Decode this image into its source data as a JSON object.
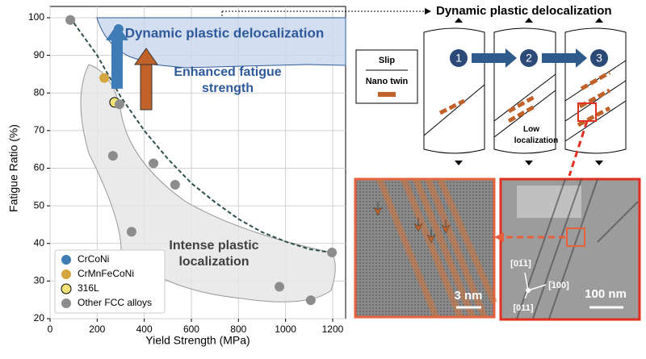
{
  "chart_data": {
    "type": "scatter",
    "xlabel": "Yield Strength (MPa)",
    "ylabel": "Fatigue Ratio (%)",
    "xlim": [
      0,
      1255
    ],
    "ylim": [
      20,
      100
    ],
    "xticks": [
      0,
      200,
      400,
      600,
      800,
      1000,
      1200
    ],
    "yticks": [
      20,
      30,
      40,
      50,
      60,
      70,
      80,
      90,
      100
    ],
    "grid": true,
    "legend": "lower left",
    "series": [
      {
        "name": "CrCoNi",
        "color": "#3f7bb5",
        "x": [
          291
        ],
        "values": [
          97
        ]
      },
      {
        "name": "CrMnFeCoNi",
        "color": "#d4a640",
        "x": [
          230
        ],
        "values": [
          84
        ]
      },
      {
        "name": "316L",
        "color": "#f5e27a",
        "x": [
          274
        ],
        "values": [
          77.5
        ]
      },
      {
        "name": "Other FCC alloys",
        "color": "#8c8c8c",
        "x": [
          86,
          295,
          267,
          439,
          531,
          346,
          974,
          1107,
          1197
        ],
        "values": [
          99.4,
          77,
          63.3,
          61.3,
          55.6,
          43.1,
          28.5,
          24.9,
          37.6
        ]
      }
    ],
    "fit_curve": {
      "color": "#2f4f4f",
      "x": [
        85,
        200,
        300,
        400,
        500,
        600,
        700,
        800,
        900,
        1000,
        1100,
        1200
      ],
      "values": [
        100,
        90,
        79,
        70,
        62.5,
        56,
        51,
        46.5,
        43,
        40.5,
        38.5,
        37.5
      ]
    },
    "annotations": [
      {
        "text": [
          "Dynamic plastic delocalization"
        ],
        "color": "#2e5a9c"
      },
      {
        "text": [
          "Enhanced fatigue",
          "strength"
        ],
        "color": "#2e5a9c"
      },
      {
        "text": [
          "Intense plastic",
          "localization"
        ],
        "color": "#404040"
      }
    ]
  },
  "figure": {
    "heading": "Dynamic plastic delocalization",
    "legend": {
      "slip": "Slip",
      "twin": "Nano twin"
    },
    "steps": [
      "1",
      "2",
      "3"
    ],
    "low_localization": [
      "Low",
      "localization"
    ],
    "scale_left": "3 nm",
    "scale_right": "100 nm",
    "directions": [
      "[01̅1]",
      "[̅100]",
      "[011]"
    ]
  }
}
